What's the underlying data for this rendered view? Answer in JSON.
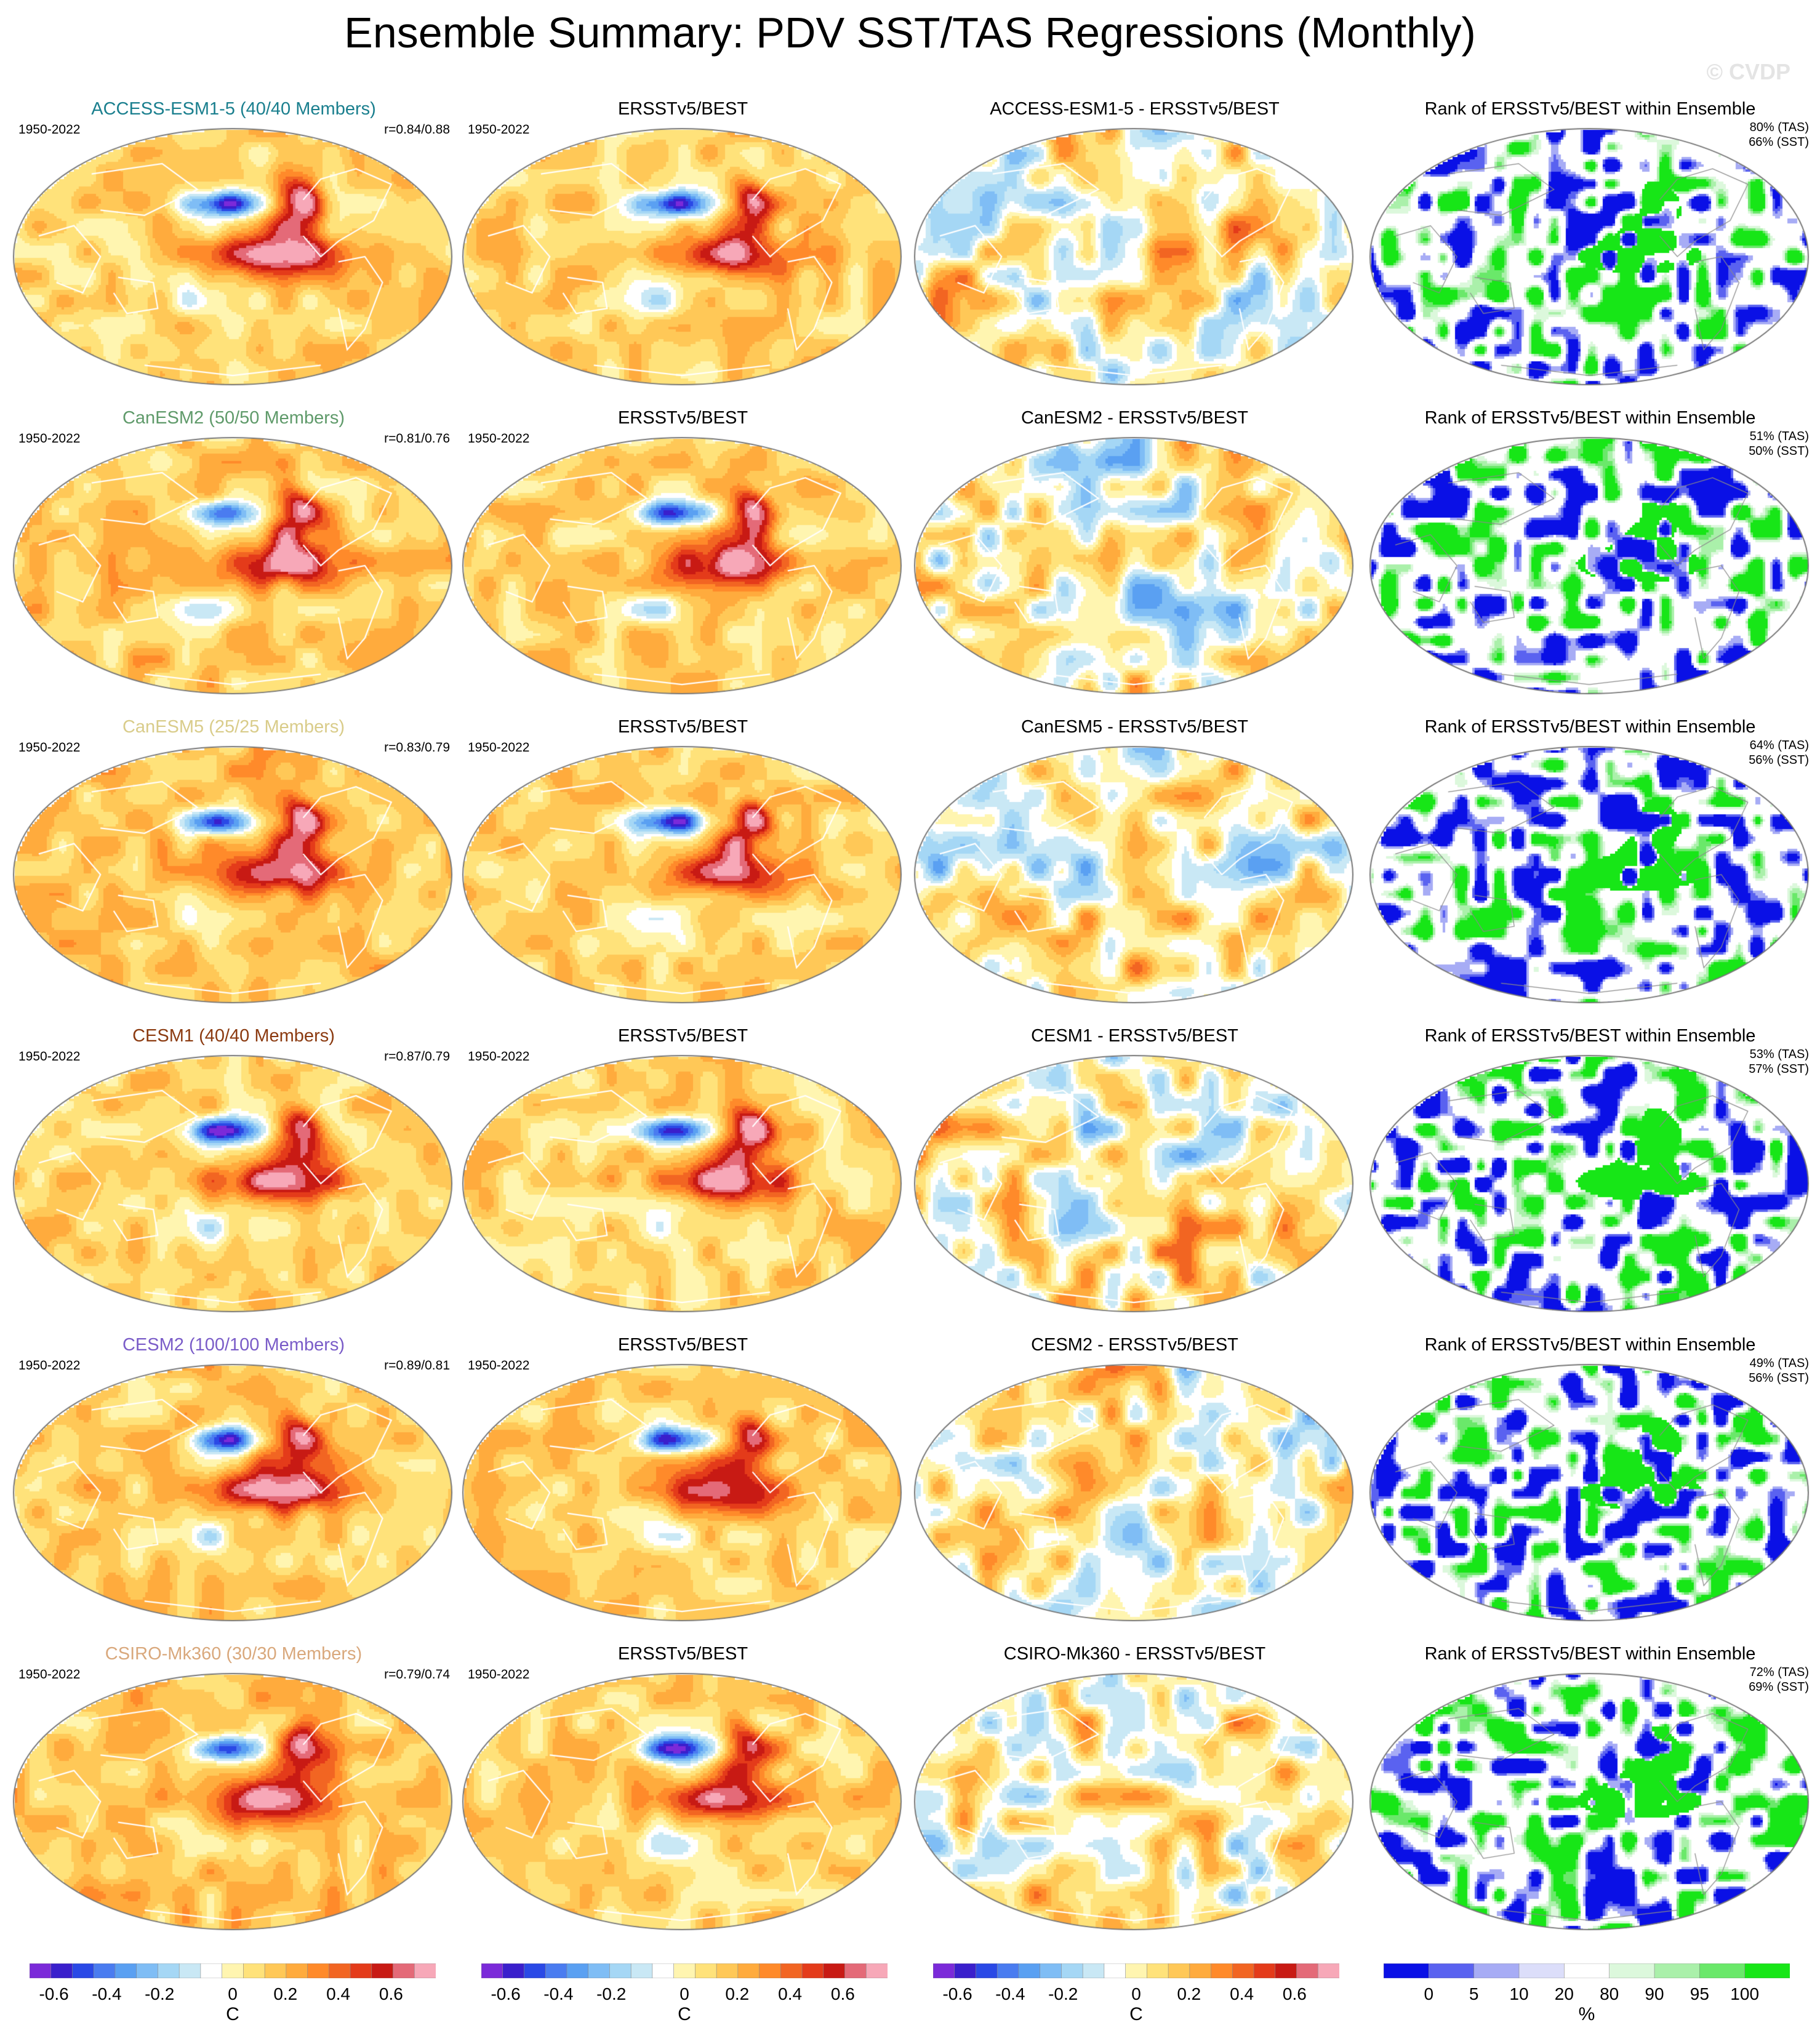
{
  "title": "Ensemble Summary: PDV SST/TAS Regressions (Monthly)",
  "watermark": "© CVDP",
  "period": "1950-2022",
  "obs_name": "ERSSTv5/BEST",
  "rank_title": "Rank of ERSSTv5/BEST within Ensemble",
  "rows": [
    {
      "model_title": "ACCESS-ESM1-5 (40/40 Members)",
      "title_color": "#1a7f8e",
      "corr": "r=0.84/0.88",
      "diff_title": "ACCESS-ESM1-5 - ERSSTv5/BEST",
      "rank_tas": "80% (TAS)",
      "rank_sst": "66% (SST)"
    },
    {
      "model_title": "CanESM2 (50/50 Members)",
      "title_color": "#5f9a6a",
      "corr": "r=0.81/0.76",
      "diff_title": "CanESM2 - ERSSTv5/BEST",
      "rank_tas": "51% (TAS)",
      "rank_sst": "50% (SST)"
    },
    {
      "model_title": "CanESM5 (25/25 Members)",
      "title_color": "#d9cc8a",
      "corr": "r=0.83/0.79",
      "diff_title": "CanESM5 - ERSSTv5/BEST",
      "rank_tas": "64% (TAS)",
      "rank_sst": "56% (SST)"
    },
    {
      "model_title": "CESM1 (40/40 Members)",
      "title_color": "#8b3a10",
      "corr": "r=0.87/0.79",
      "diff_title": "CESM1 - ERSSTv5/BEST",
      "rank_tas": "53% (TAS)",
      "rank_sst": "57% (SST)"
    },
    {
      "model_title": "CESM2 (100/100 Members)",
      "title_color": "#7a5cc8",
      "corr": "r=0.89/0.81",
      "diff_title": "CESM2 - ERSSTv5/BEST",
      "rank_tas": "49% (TAS)",
      "rank_sst": "56% (SST)"
    },
    {
      "model_title": "CSIRO-Mk360 (30/30 Members)",
      "title_color": "#d9a87c",
      "corr": "r=0.79/0.74",
      "diff_title": "CSIRO-Mk360 - ERSSTv5/BEST",
      "rank_tas": "72% (TAS)",
      "rank_sst": "69% (SST)"
    }
  ],
  "colorbars": [
    {
      "name": "regression",
      "unit": "C",
      "labels": [
        "-0.6",
        "-0.4",
        "-0.2",
        "0",
        "0.2",
        "0.4",
        "0.6"
      ],
      "colors": [
        "#7b2ad9",
        "#3a1fcc",
        "#2a49e6",
        "#4a7cf0",
        "#5aa0f2",
        "#7fbdf5",
        "#a5d7f5",
        "#c9e8f5",
        "#ffffff",
        "#fff5b0",
        "#ffe27a",
        "#ffc857",
        "#ffab3d",
        "#ff8a2a",
        "#f26522",
        "#e43b1a",
        "#c81a14",
        "#e46a78",
        "#f7a8b8"
      ]
    },
    {
      "name": "regression-obs",
      "unit": "C",
      "labels": [
        "-0.6",
        "-0.4",
        "-0.2",
        "0",
        "0.2",
        "0.4",
        "0.6"
      ],
      "colors": [
        "#7b2ad9",
        "#3a1fcc",
        "#2a49e6",
        "#4a7cf0",
        "#5aa0f2",
        "#7fbdf5",
        "#a5d7f5",
        "#c9e8f5",
        "#ffffff",
        "#fff5b0",
        "#ffe27a",
        "#ffc857",
        "#ffab3d",
        "#ff8a2a",
        "#f26522",
        "#e43b1a",
        "#c81a14",
        "#e46a78",
        "#f7a8b8"
      ]
    },
    {
      "name": "difference",
      "unit": "C",
      "labels": [
        "-0.6",
        "-0.4",
        "-0.2",
        "0",
        "0.2",
        "0.4",
        "0.6"
      ],
      "colors": [
        "#7b2ad9",
        "#3a1fcc",
        "#2a49e6",
        "#4a7cf0",
        "#5aa0f2",
        "#7fbdf5",
        "#a5d7f5",
        "#c9e8f5",
        "#ffffff",
        "#fff5b0",
        "#ffe27a",
        "#ffc857",
        "#ffab3d",
        "#ff8a2a",
        "#f26522",
        "#e43b1a",
        "#c81a14",
        "#e46a78",
        "#f7a8b8"
      ]
    },
    {
      "name": "rank",
      "unit": "%",
      "labels": [
        "0",
        "5",
        "10",
        "20",
        "80",
        "90",
        "95",
        "100"
      ],
      "colors": [
        "#0a10e6",
        "#5a62f0",
        "#a7acf5",
        "#dcdefa",
        "#ffffff",
        "#dcf8dc",
        "#aaf0aa",
        "#6ae86a",
        "#17e617"
      ]
    }
  ],
  "chart_data": [
    {
      "type": "heatmap",
      "panel": "model ensemble-mean PDV regression map (column 1)",
      "units": "C",
      "range": [
        -0.7,
        0.7
      ]
    },
    {
      "type": "heatmap",
      "panel": "ERSSTv5/BEST PDV regression map (column 2)",
      "units": "C",
      "range": [
        -0.7,
        0.7
      ]
    },
    {
      "type": "heatmap",
      "panel": "model minus ERSSTv5/BEST difference map (column 3)",
      "units": "C",
      "range": [
        -0.7,
        0.7
      ]
    },
    {
      "type": "heatmap",
      "panel": "rank of ERSSTv5/BEST within ensemble (column 4)",
      "units": "%",
      "levels": [
        0,
        5,
        10,
        20,
        80,
        90,
        95,
        100
      ]
    }
  ]
}
